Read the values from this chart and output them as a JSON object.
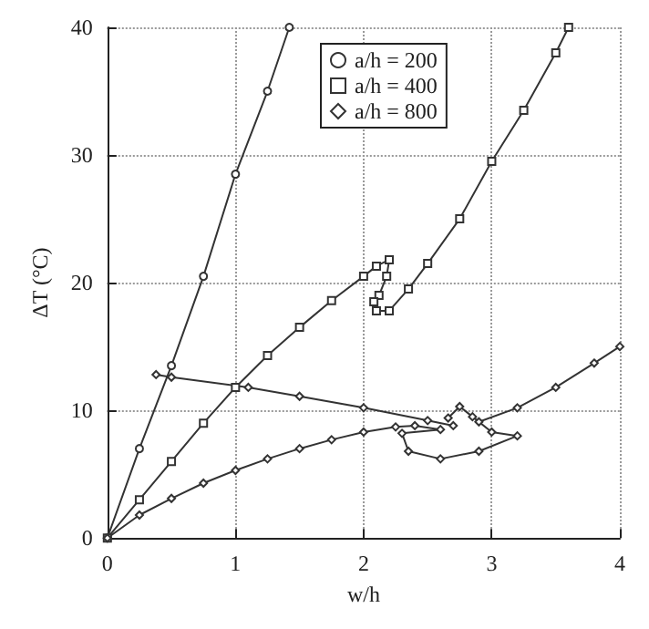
{
  "chart_data": {
    "type": "line",
    "xlabel": "w/h",
    "ylabel": "ΔT (°C)",
    "xlim": [
      0,
      4
    ],
    "ylim": [
      0,
      40
    ],
    "xticks": [
      0,
      1,
      2,
      3,
      4
    ],
    "yticks": [
      0,
      10,
      20,
      30,
      40
    ],
    "grid": true,
    "legend": "top right",
    "line_style": "solid",
    "series": [
      {
        "name": "a/h = 200",
        "color": "#333333",
        "marker": "circle",
        "x": [
          0,
          0.25,
          0.5,
          0.75,
          1,
          1.25,
          1.42
        ],
        "values": [
          0,
          7,
          13.5,
          20.5,
          28.5,
          35,
          40
        ]
      },
      {
        "name": "a/h = 400",
        "color": "#333333",
        "marker": "square",
        "x": [
          0,
          0.25,
          0.5,
          0.75,
          1,
          1.25,
          1.5,
          1.75,
          2,
          2.1,
          2.2,
          2.18,
          2.12,
          2.08,
          2.1,
          2.2,
          2.35,
          2.5,
          2.75,
          3,
          3.25,
          3.5,
          3.6
        ],
        "values": [
          0,
          3,
          6,
          9,
          11.8,
          14.3,
          16.5,
          18.6,
          20.5,
          21.3,
          21.8,
          20.5,
          19,
          18.5,
          17.8,
          17.8,
          19.5,
          21.5,
          25,
          29.5,
          33.5,
          38,
          40
        ]
      },
      {
        "name": "a/h = 800",
        "color": "#333333",
        "marker": "diamond",
        "x": [
          0,
          0.25,
          0.5,
          0.75,
          1,
          1.25,
          1.5,
          1.75,
          2,
          2.25,
          2.4,
          2.6,
          2.3,
          2.35,
          2.6,
          2.9,
          3.2,
          3.0,
          2.85,
          2.75,
          2.66,
          null,
          0.38,
          0.5,
          1.1,
          1.5,
          2,
          2.5,
          2.7,
          null,
          2.9,
          3.2,
          3.5,
          3.8,
          4
        ],
        "values": [
          0,
          1.8,
          3.1,
          4.3,
          5.3,
          6.2,
          7,
          7.7,
          8.3,
          8.7,
          8.8,
          8.5,
          8.2,
          6.8,
          6.2,
          6.8,
          8,
          8.3,
          9.5,
          10.3,
          9.4,
          null,
          12.8,
          12.6,
          11.8,
          11.1,
          10.2,
          9.2,
          8.8,
          null,
          9.1,
          10.2,
          11.8,
          13.7,
          15
        ]
      }
    ]
  }
}
